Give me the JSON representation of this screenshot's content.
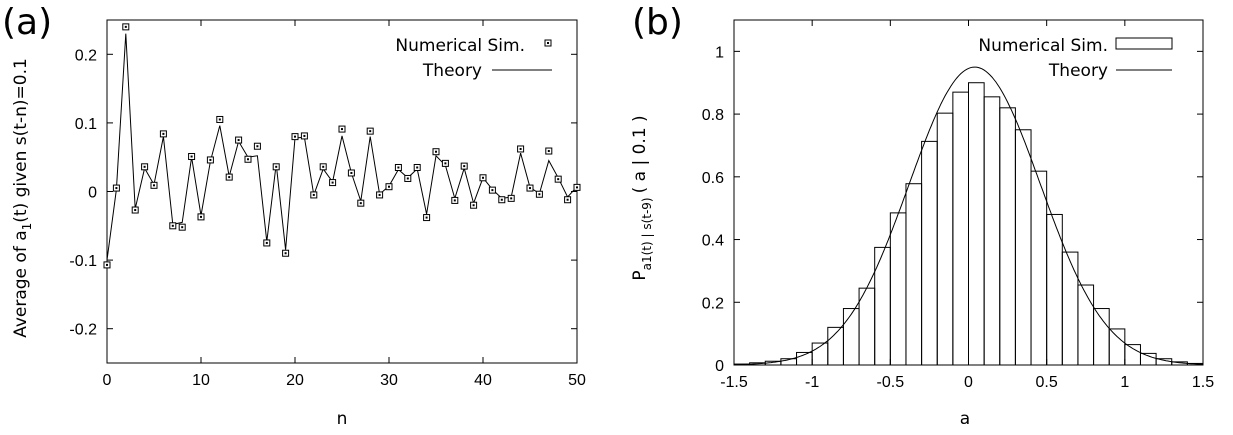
{
  "panels": [
    {
      "label": "(a)",
      "legend": [
        "Numerical Sim.",
        "Theory"
      ]
    },
    {
      "label": "(b)",
      "legend": [
        "Numerical Sim.",
        "Theory"
      ]
    }
  ],
  "chart_data": [
    {
      "type": "scatter",
      "xlabel": "n",
      "ylabel_main": "Average of a",
      "ylabel_sub": "1",
      "ylabel_rest": "(t) given s(t-n)=0.1",
      "xlim": [
        0,
        50
      ],
      "ylim": [
        -0.25,
        0.25
      ],
      "xticks": [
        0,
        10,
        20,
        30,
        40,
        50
      ],
      "yticks": [
        -0.2,
        -0.1,
        0,
        0.1,
        0.2
      ],
      "ytick_labels": [
        "-0.2",
        "-0.1",
        "0",
        "0.1",
        "0.2"
      ],
      "grid": false,
      "legend_position": "top-right",
      "x": [
        0,
        1,
        2,
        3,
        4,
        5,
        6,
        7,
        8,
        9,
        10,
        11,
        12,
        13,
        14,
        15,
        16,
        17,
        18,
        19,
        20,
        21,
        22,
        23,
        24,
        25,
        26,
        27,
        28,
        29,
        30,
        31,
        32,
        33,
        34,
        35,
        36,
        37,
        38,
        39,
        40,
        41,
        42,
        43,
        44,
        45,
        46,
        47,
        48,
        49,
        50
      ],
      "series": [
        {
          "name": "Numerical Sim.",
          "style": "markers",
          "values": [
            -0.107,
            0.005,
            0.24,
            -0.027,
            0.036,
            0.009,
            0.084,
            -0.05,
            -0.052,
            0.051,
            -0.037,
            0.046,
            0.105,
            0.021,
            0.075,
            0.047,
            0.066,
            -0.075,
            0.036,
            -0.09,
            0.08,
            0.081,
            -0.005,
            0.036,
            0.013,
            0.091,
            0.027,
            -0.017,
            0.088,
            -0.005,
            0.007,
            0.035,
            0.019,
            0.035,
            -0.038,
            0.058,
            0.041,
            -0.013,
            0.037,
            -0.02,
            0.02,
            0.002,
            -0.012,
            -0.01,
            0.062,
            0.005,
            -0.004,
            0.059,
            0.018,
            -0.012,
            0.006
          ]
        },
        {
          "name": "Theory",
          "style": "line",
          "values": [
            -0.1,
            0.003,
            0.23,
            -0.025,
            0.034,
            0.01,
            0.08,
            -0.048,
            -0.045,
            0.05,
            -0.035,
            0.044,
            0.096,
            0.022,
            0.073,
            0.05,
            0.052,
            -0.073,
            0.04,
            -0.085,
            0.078,
            0.079,
            -0.005,
            0.033,
            0.014,
            0.081,
            0.027,
            -0.014,
            0.08,
            -0.004,
            0.008,
            0.032,
            0.02,
            0.033,
            -0.033,
            0.052,
            0.038,
            -0.01,
            0.034,
            -0.017,
            0.02,
            0.003,
            -0.01,
            -0.008,
            0.056,
            0.006,
            -0.003,
            0.045,
            0.02,
            -0.008,
            0.007
          ]
        }
      ]
    },
    {
      "type": "bar",
      "xlabel": "a",
      "ylabel_main": "P",
      "ylabel_sub": "a1(t) | s(t-9)",
      "ylabel_rest": "( a | 0.1 )",
      "xlim": [
        -1.5,
        1.5
      ],
      "ylim": [
        0,
        1.1
      ],
      "xticks": [
        -1.5,
        -1,
        -0.5,
        0,
        0.5,
        1,
        1.5
      ],
      "yticks": [
        0,
        0.2,
        0.4,
        0.6,
        0.8,
        1
      ],
      "grid": false,
      "legend_position": "top-right",
      "bin_width": 0.1,
      "bin_centers": [
        -1.45,
        -1.35,
        -1.25,
        -1.15,
        -1.05,
        -0.95,
        -0.85,
        -0.75,
        -0.65,
        -0.55,
        -0.45,
        -0.35,
        -0.25,
        -0.15,
        -0.05,
        0.05,
        0.15,
        0.25,
        0.35,
        0.45,
        0.55,
        0.65,
        0.75,
        0.85,
        0.95,
        1.05,
        1.15,
        1.25,
        1.35,
        1.45
      ],
      "series": [
        {
          "name": "Numerical Sim.",
          "style": "histogram",
          "values": [
            0.003,
            0.007,
            0.012,
            0.02,
            0.04,
            0.07,
            0.12,
            0.18,
            0.245,
            0.375,
            0.485,
            0.578,
            0.713,
            0.803,
            0.87,
            0.9,
            0.855,
            0.82,
            0.75,
            0.618,
            0.48,
            0.36,
            0.255,
            0.18,
            0.115,
            0.065,
            0.037,
            0.02,
            0.01,
            0.005
          ]
        },
        {
          "name": "Theory",
          "style": "curve",
          "mean": 0.04,
          "peak": 0.95,
          "sigma": 0.42
        }
      ]
    }
  ]
}
